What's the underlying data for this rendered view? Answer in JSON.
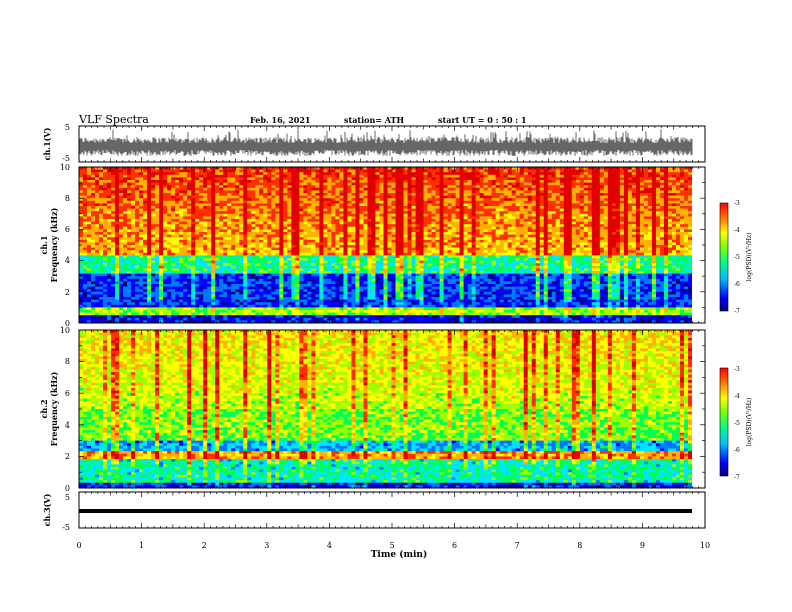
{
  "header": {
    "title": "VLF Spectra",
    "date": "Feb. 16, 2021",
    "station": "station= ATH",
    "start": "start  UT =   0 : 50 : 1"
  },
  "chart_data": [
    {
      "type": "line",
      "name": "ch1-waveform",
      "ylabel": "ch.1(V)",
      "ylim": [
        -5,
        5
      ],
      "yticks": [
        "5",
        "-5"
      ],
      "xlim": [
        0,
        10
      ]
    },
    {
      "type": "heatmap",
      "name": "ch1-spectrogram",
      "ylabel_line1": "ch.1",
      "ylabel_line2": "Frequency  (kHz)",
      "ylim": [
        0,
        10
      ],
      "yticks": [
        "0",
        "2",
        "4",
        "6",
        "8",
        "10"
      ],
      "xlim": [
        0,
        10
      ],
      "colorbar": {
        "label": "log(PSD)(V²/Hz)",
        "min": -7,
        "max": -3,
        "ticks": [
          "-3",
          "-4",
          "-5",
          "-6",
          "-7"
        ]
      }
    },
    {
      "type": "heatmap",
      "name": "ch2-spectrogram",
      "ylabel_line1": "ch.2",
      "ylabel_line2": "Frequency  (kHz)",
      "ylim": [
        0,
        10
      ],
      "yticks": [
        "0",
        "2",
        "4",
        "6",
        "8",
        "10"
      ],
      "xlim": [
        0,
        10
      ],
      "colorbar": {
        "label": "log(PSD)(V²/Hz)",
        "min": -7,
        "max": -3,
        "ticks": [
          "-3",
          "-4",
          "-5",
          "-6",
          "-7"
        ]
      }
    },
    {
      "type": "line",
      "name": "ch3-waveform",
      "ylabel": "ch.3(V)",
      "ylim": [
        -5,
        5
      ],
      "yticks": [
        "5",
        "-5"
      ],
      "xlim": [
        0,
        10
      ],
      "xlabel": "Time  (min)",
      "xticks": [
        "0",
        "1",
        "2",
        "3",
        "4",
        "5",
        "6",
        "7",
        "8",
        "9",
        "10"
      ]
    }
  ],
  "colors": {
    "scale": [
      "#00008b",
      "#0000ff",
      "#0077ff",
      "#00e5ff",
      "#00ff55",
      "#9dff00",
      "#ffff00",
      "#ffb000",
      "#ff3000",
      "#e00000"
    ]
  }
}
